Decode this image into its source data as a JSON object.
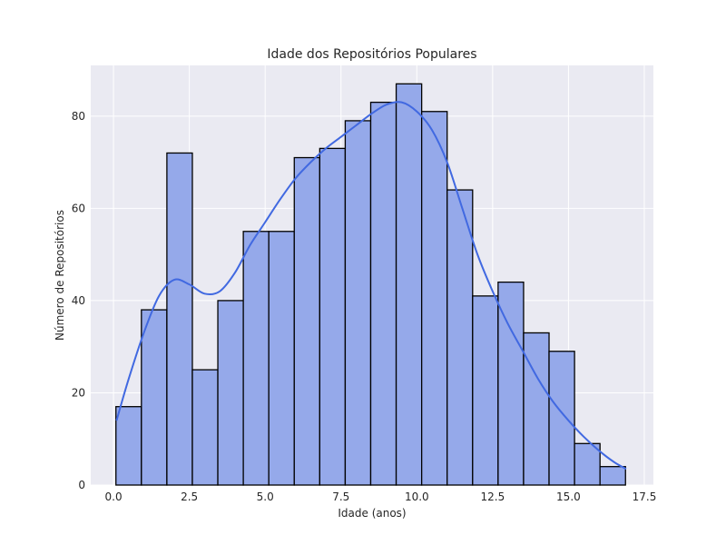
{
  "chart_data": {
    "type": "bar",
    "title": "Idade dos Repositórios Populares",
    "xlabel": "Idade (anos)",
    "ylabel": "Número de Repositórios",
    "xlim": [
      -0.75,
      17.8
    ],
    "ylim": [
      0,
      91
    ],
    "x_ticks": [
      0.0,
      2.5,
      5.0,
      7.5,
      10.0,
      12.5,
      15.0,
      17.5
    ],
    "x_tick_labels": [
      "0.0",
      "2.5",
      "5.0",
      "7.5",
      "10.0",
      "12.5",
      "15.0",
      "17.5"
    ],
    "y_ticks": [
      0,
      20,
      40,
      60,
      80
    ],
    "y_tick_labels": [
      "0",
      "20",
      "40",
      "60",
      "80"
    ],
    "grid": true,
    "bins": [
      {
        "x0": 0.08,
        "x1": 0.92,
        "count": 17
      },
      {
        "x0": 0.92,
        "x1": 1.76,
        "count": 38
      },
      {
        "x0": 1.76,
        "x1": 2.6,
        "count": 72
      },
      {
        "x0": 2.6,
        "x1": 3.44,
        "count": 25
      },
      {
        "x0": 3.44,
        "x1": 4.28,
        "count": 40
      },
      {
        "x0": 4.28,
        "x1": 5.12,
        "count": 55
      },
      {
        "x0": 5.12,
        "x1": 5.96,
        "count": 55
      },
      {
        "x0": 5.96,
        "x1": 6.8,
        "count": 71
      },
      {
        "x0": 6.8,
        "x1": 7.64,
        "count": 73
      },
      {
        "x0": 7.64,
        "x1": 8.48,
        "count": 79
      },
      {
        "x0": 8.48,
        "x1": 9.32,
        "count": 83
      },
      {
        "x0": 9.32,
        "x1": 10.16,
        "count": 87
      },
      {
        "x0": 10.16,
        "x1": 11.0,
        "count": 81
      },
      {
        "x0": 11.0,
        "x1": 11.84,
        "count": 64
      },
      {
        "x0": 11.84,
        "x1": 12.68,
        "count": 41
      },
      {
        "x0": 12.68,
        "x1": 13.52,
        "count": 44
      },
      {
        "x0": 13.52,
        "x1": 14.36,
        "count": 33
      },
      {
        "x0": 14.36,
        "x1": 15.2,
        "count": 29
      },
      {
        "x0": 15.2,
        "x1": 16.04,
        "count": 9
      },
      {
        "x0": 16.04,
        "x1": 16.88,
        "count": 4
      }
    ],
    "kde_curve": {
      "x": [
        0.1,
        0.5,
        1.0,
        1.5,
        2.0,
        2.5,
        3.0,
        3.5,
        4.0,
        4.5,
        5.0,
        5.5,
        6.0,
        6.5,
        7.0,
        7.5,
        8.0,
        8.5,
        9.0,
        9.5,
        10.0,
        10.5,
        11.0,
        11.5,
        12.0,
        12.5,
        13.0,
        13.5,
        14.0,
        14.5,
        15.0,
        15.5,
        16.0,
        16.5,
        16.9
      ],
      "y": [
        14,
        23,
        33,
        41,
        44.5,
        43.5,
        41.5,
        42,
        46,
        52,
        57,
        62,
        66.5,
        70,
        73,
        75.5,
        78,
        80.5,
        82.5,
        83,
        81,
        77,
        70,
        60,
        50,
        42,
        35,
        29,
        23,
        18,
        14,
        10.5,
        7.5,
        5,
        3.5
      ]
    },
    "colors": {
      "bar_fill": "#95a9ea",
      "bar_edge": "#000000",
      "kde_line": "#4169e1",
      "plot_bg": "#eaeaf2",
      "grid": "#ffffff"
    }
  }
}
